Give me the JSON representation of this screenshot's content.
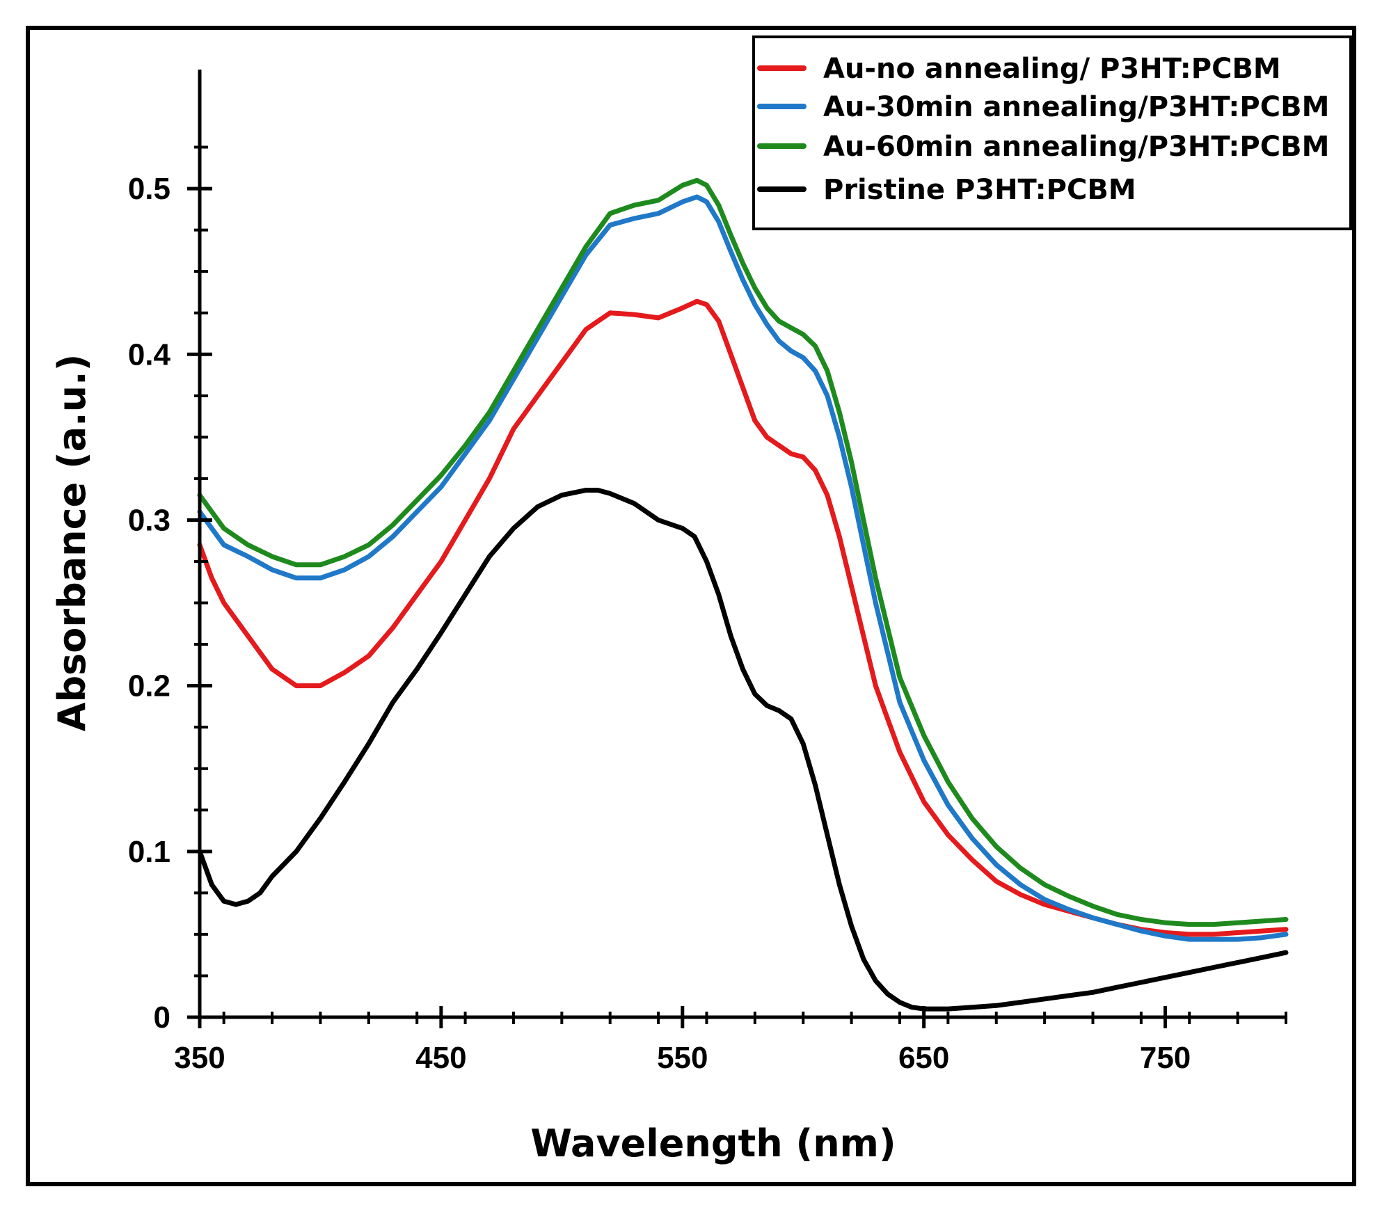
{
  "chart_data": {
    "type": "line",
    "xlabel": "Wavelength (nm)",
    "ylabel": "Absorbance (a.u.)",
    "xlim": [
      350,
      800
    ],
    "ylim": [
      0,
      0.55
    ],
    "xticks": [
      350,
      450,
      550,
      650,
      750
    ],
    "xtick_labels": [
      "350",
      "450",
      "550",
      "650",
      "750"
    ],
    "yticks": [
      0,
      0.1,
      0.2,
      0.3,
      0.4,
      0.5
    ],
    "ytick_labels": [
      "0",
      "0.1",
      "0.2",
      "0.3",
      "0.4",
      "0.5"
    ],
    "legend_position": "top-right",
    "series": [
      {
        "name": "Au-no annealing/ P3HT:PCBM",
        "color": "#e41a1c",
        "x": [
          350,
          355,
          360,
          370,
          380,
          390,
          400,
          410,
          420,
          430,
          440,
          450,
          460,
          470,
          480,
          490,
          500,
          510,
          520,
          530,
          540,
          550,
          556,
          560,
          565,
          570,
          575,
          580,
          585,
          590,
          595,
          600,
          605,
          610,
          615,
          620,
          625,
          630,
          635,
          640,
          650,
          660,
          670,
          680,
          690,
          700,
          710,
          720,
          730,
          740,
          750,
          760,
          770,
          780,
          790,
          800
        ],
        "y": [
          0.285,
          0.265,
          0.25,
          0.23,
          0.21,
          0.2,
          0.2,
          0.208,
          0.218,
          0.235,
          0.255,
          0.275,
          0.3,
          0.325,
          0.355,
          0.375,
          0.395,
          0.415,
          0.425,
          0.424,
          0.422,
          0.428,
          0.432,
          0.43,
          0.42,
          0.4,
          0.38,
          0.36,
          0.35,
          0.345,
          0.34,
          0.338,
          0.33,
          0.315,
          0.29,
          0.26,
          0.23,
          0.2,
          0.18,
          0.16,
          0.13,
          0.11,
          0.095,
          0.082,
          0.074,
          0.068,
          0.064,
          0.06,
          0.056,
          0.053,
          0.051,
          0.05,
          0.05,
          0.051,
          0.052,
          0.053
        ]
      },
      {
        "name": "Au-30min annealing/P3HT:PCBM",
        "color": "#1f78c8",
        "x": [
          350,
          355,
          360,
          370,
          380,
          390,
          400,
          410,
          420,
          430,
          440,
          450,
          460,
          470,
          480,
          490,
          500,
          510,
          520,
          530,
          540,
          550,
          556,
          560,
          565,
          570,
          575,
          580,
          585,
          590,
          595,
          600,
          605,
          610,
          615,
          620,
          625,
          630,
          635,
          640,
          650,
          660,
          670,
          680,
          690,
          700,
          710,
          720,
          730,
          740,
          750,
          760,
          770,
          780,
          790,
          800
        ],
        "y": [
          0.305,
          0.295,
          0.285,
          0.278,
          0.27,
          0.265,
          0.265,
          0.27,
          0.278,
          0.29,
          0.305,
          0.32,
          0.34,
          0.36,
          0.385,
          0.41,
          0.435,
          0.46,
          0.478,
          0.482,
          0.485,
          0.492,
          0.495,
          0.492,
          0.48,
          0.462,
          0.445,
          0.43,
          0.418,
          0.408,
          0.402,
          0.398,
          0.39,
          0.375,
          0.35,
          0.32,
          0.285,
          0.25,
          0.22,
          0.19,
          0.155,
          0.128,
          0.108,
          0.092,
          0.08,
          0.071,
          0.065,
          0.06,
          0.056,
          0.052,
          0.049,
          0.047,
          0.047,
          0.047,
          0.048,
          0.05
        ]
      },
      {
        "name": "Au-60min annealing/P3HT:PCBM",
        "color": "#1e8a1e",
        "x": [
          350,
          355,
          360,
          370,
          380,
          390,
          400,
          410,
          420,
          430,
          440,
          450,
          460,
          470,
          480,
          490,
          500,
          510,
          520,
          530,
          540,
          550,
          556,
          560,
          565,
          570,
          575,
          580,
          585,
          590,
          595,
          600,
          605,
          610,
          615,
          620,
          625,
          630,
          635,
          640,
          650,
          660,
          670,
          680,
          690,
          700,
          710,
          720,
          730,
          740,
          750,
          760,
          770,
          780,
          790,
          800
        ],
        "y": [
          0.315,
          0.305,
          0.295,
          0.285,
          0.278,
          0.273,
          0.273,
          0.278,
          0.285,
          0.297,
          0.312,
          0.327,
          0.345,
          0.365,
          0.39,
          0.415,
          0.44,
          0.465,
          0.485,
          0.49,
          0.493,
          0.502,
          0.505,
          0.502,
          0.49,
          0.472,
          0.455,
          0.44,
          0.428,
          0.42,
          0.416,
          0.412,
          0.405,
          0.39,
          0.365,
          0.335,
          0.3,
          0.265,
          0.235,
          0.205,
          0.17,
          0.142,
          0.12,
          0.103,
          0.09,
          0.08,
          0.073,
          0.067,
          0.062,
          0.059,
          0.057,
          0.056,
          0.056,
          0.057,
          0.058,
          0.059
        ]
      },
      {
        "name": "Pristine P3HT:PCBM",
        "color": "#000000",
        "x": [
          350,
          355,
          360,
          365,
          370,
          375,
          380,
          390,
          400,
          410,
          420,
          430,
          440,
          450,
          460,
          470,
          480,
          490,
          500,
          510,
          515,
          520,
          530,
          540,
          550,
          555,
          560,
          565,
          570,
          575,
          580,
          585,
          590,
          595,
          600,
          605,
          610,
          615,
          620,
          625,
          630,
          635,
          640,
          645,
          650,
          660,
          670,
          680,
          690,
          700,
          710,
          720,
          730,
          740,
          750,
          760,
          770,
          780,
          790,
          800
        ],
        "y": [
          0.1,
          0.08,
          0.07,
          0.068,
          0.07,
          0.075,
          0.085,
          0.1,
          0.12,
          0.142,
          0.165,
          0.19,
          0.21,
          0.232,
          0.255,
          0.278,
          0.295,
          0.308,
          0.315,
          0.318,
          0.318,
          0.316,
          0.31,
          0.3,
          0.295,
          0.29,
          0.275,
          0.255,
          0.23,
          0.21,
          0.195,
          0.188,
          0.185,
          0.18,
          0.165,
          0.14,
          0.11,
          0.08,
          0.055,
          0.035,
          0.022,
          0.014,
          0.009,
          0.006,
          0.005,
          0.005,
          0.006,
          0.007,
          0.009,
          0.011,
          0.013,
          0.015,
          0.018,
          0.021,
          0.024,
          0.027,
          0.03,
          0.033,
          0.036,
          0.039
        ]
      }
    ]
  }
}
